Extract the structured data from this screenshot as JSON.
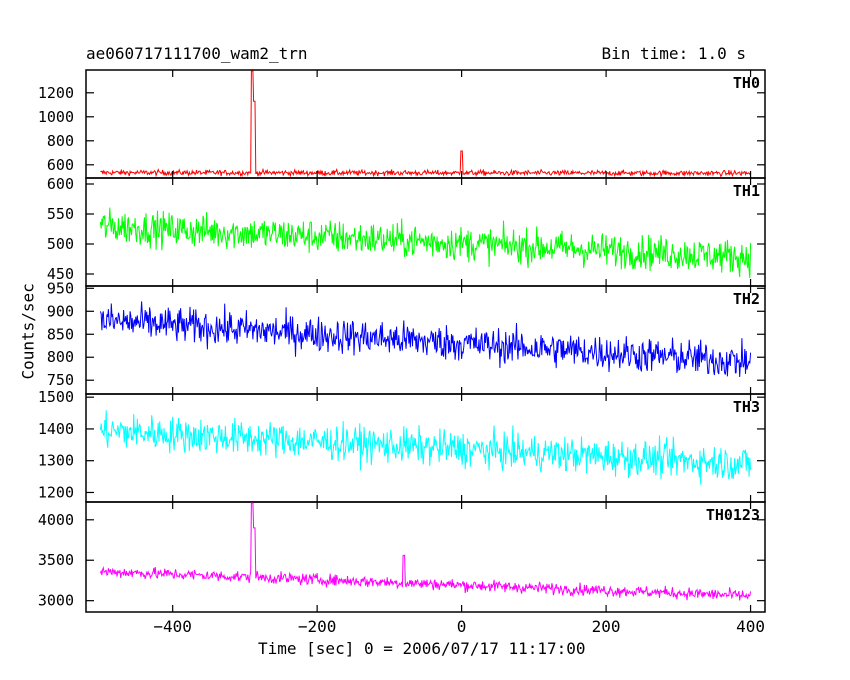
{
  "chart_data": {
    "type": "line",
    "title": "ae060717111700_wam2_trn",
    "subtitle": "Bin time: 1.0 s",
    "xlabel": "Time [sec] 0 = 2006/07/17 11:17:00",
    "ylabel": "Counts/sec",
    "xlim": [
      -520,
      420
    ],
    "x_range": [
      -500,
      400
    ],
    "xticks": [
      -400,
      -200,
      0,
      200,
      400
    ],
    "panels": [
      {
        "name": "TH0",
        "color": "#ff0000",
        "ylim": [
          490,
          1390
        ],
        "yticks": [
          600,
          800,
          1000,
          1200
        ],
        "start": 535,
        "end": 530,
        "noise": 22,
        "spikes": [
          {
            "x": -290,
            "y": 1390
          },
          {
            "x": -287,
            "y": 1130
          },
          {
            "x": 0,
            "y": 715
          }
        ]
      },
      {
        "name": "TH1",
        "color": "#00ff00",
        "ylim": [
          430,
          610
        ],
        "yticks": [
          450,
          500,
          550,
          600
        ],
        "start": 530,
        "end": 478,
        "noise": 28,
        "spikes": []
      },
      {
        "name": "TH2",
        "color": "#0000ff",
        "ylim": [
          720,
          955
        ],
        "yticks": [
          750,
          800,
          850,
          900,
          950
        ],
        "start": 880,
        "end": 790,
        "noise": 38,
        "spikes": []
      },
      {
        "name": "TH3",
        "color": "#00ffff",
        "ylim": [
          1170,
          1510
        ],
        "yticks": [
          1200,
          1300,
          1400,
          1500
        ],
        "start": 1395,
        "end": 1290,
        "noise": 55,
        "spikes": []
      },
      {
        "name": "TH0123",
        "color": "#ff00ff",
        "ylim": [
          2860,
          4220
        ],
        "yticks": [
          3000,
          3500,
          4000
        ],
        "start": 3360,
        "end": 3060,
        "noise": 70,
        "spikes": [
          {
            "x": -290,
            "y": 4220
          },
          {
            "x": -287,
            "y": 3900
          },
          {
            "x": -80,
            "y": 3560
          }
        ]
      }
    ]
  }
}
